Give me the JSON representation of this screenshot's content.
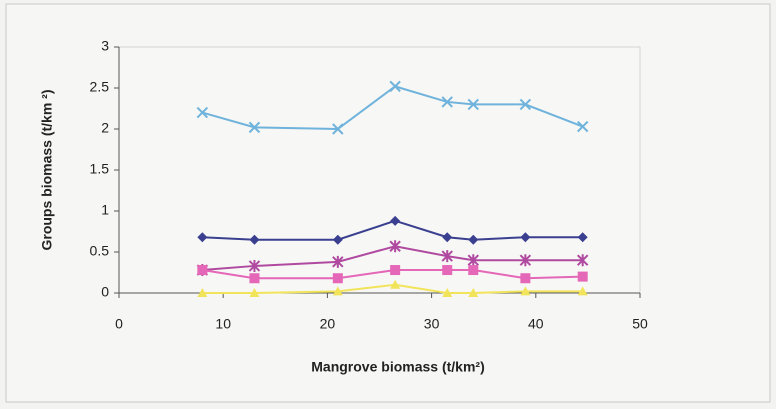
{
  "chart_data": {
    "type": "line",
    "x_label": "Mangrove biomass (t/km²)",
    "y_label": "Groups biomass (t/km ²)",
    "x": [
      8,
      13,
      21,
      26.5,
      31.5,
      34,
      39,
      44.5
    ],
    "series": [
      {
        "color": "#6fb3dc",
        "marker": "x",
        "values": [
          2.2,
          2.02,
          2.0,
          2.52,
          2.33,
          2.3,
          2.3,
          2.03
        ]
      },
      {
        "color": "#3a3f8f",
        "marker": "diamond",
        "values": [
          0.68,
          0.65,
          0.65,
          0.88,
          0.68,
          0.65,
          0.68,
          0.68
        ]
      },
      {
        "color": "#b04aa0",
        "marker": "asterisk",
        "values": [
          0.28,
          0.33,
          0.38,
          0.57,
          0.45,
          0.4,
          0.4,
          0.4
        ]
      },
      {
        "color": "#e467b8",
        "marker": "square",
        "values": [
          0.28,
          0.18,
          0.18,
          0.28,
          0.28,
          0.28,
          0.18,
          0.2
        ]
      },
      {
        "color": "#f2e45a",
        "marker": "triangle",
        "values": [
          0,
          0,
          0.02,
          0.1,
          0,
          0,
          0.02,
          0.02
        ]
      }
    ],
    "xlim": [
      0,
      50
    ],
    "xticks": [
      0,
      10,
      20,
      30,
      40,
      50
    ],
    "ylim": [
      0,
      3
    ],
    "yticks": [
      0,
      0.5,
      1,
      1.5,
      2,
      2.5,
      3
    ],
    "grid": false
  }
}
